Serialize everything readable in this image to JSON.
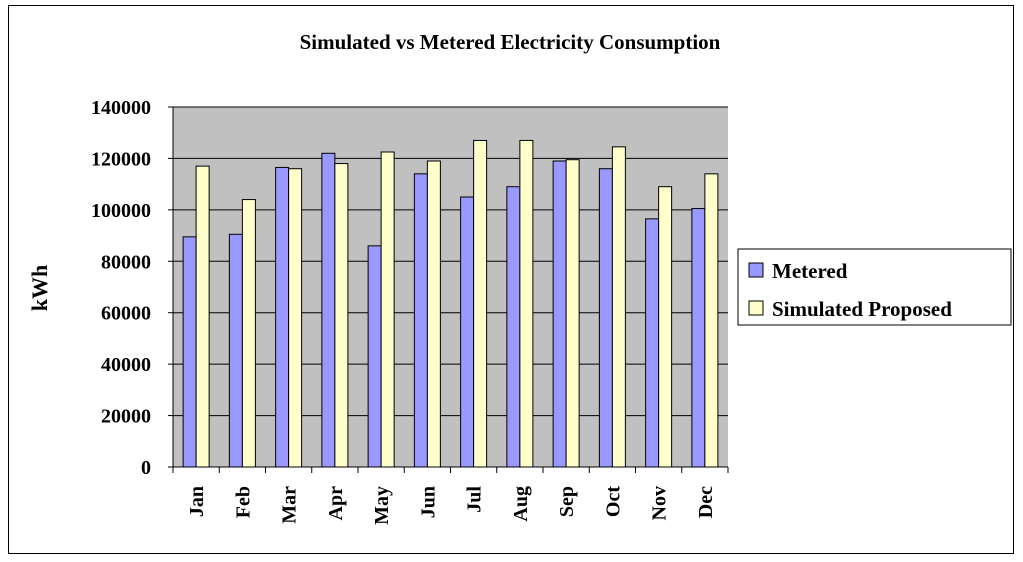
{
  "chart_data": {
    "type": "bar",
    "title": "Simulated vs Metered Electricity Consumption",
    "xlabel": "",
    "ylabel": "kWh",
    "ylim": [
      0,
      140000
    ],
    "ytick_step": 20000,
    "yticks": [
      "0",
      "20000",
      "40000",
      "60000",
      "80000",
      "100000",
      "120000",
      "140000"
    ],
    "grid": true,
    "legend_position": "right",
    "categories": [
      "Jan",
      "Feb",
      "Mar",
      "Apr",
      "May",
      "Jun",
      "Jul",
      "Aug",
      "Sep",
      "Oct",
      "Nov",
      "Dec"
    ],
    "series": [
      {
        "name": "Metered",
        "color": "#9999FF",
        "values": [
          89500,
          90500,
          116500,
          122000,
          86000,
          114000,
          105000,
          109000,
          119000,
          116000,
          96500,
          100500
        ]
      },
      {
        "name": "Simulated Proposed",
        "color": "#FFFFCC",
        "values": [
          117000,
          104000,
          116000,
          118000,
          122500,
          119000,
          127000,
          127000,
          119500,
          124500,
          109000,
          114000
        ]
      }
    ],
    "colors": {
      "plot_background": "#C0C0C0",
      "gridline": "#000000",
      "bar_outline": "#000000"
    }
  }
}
